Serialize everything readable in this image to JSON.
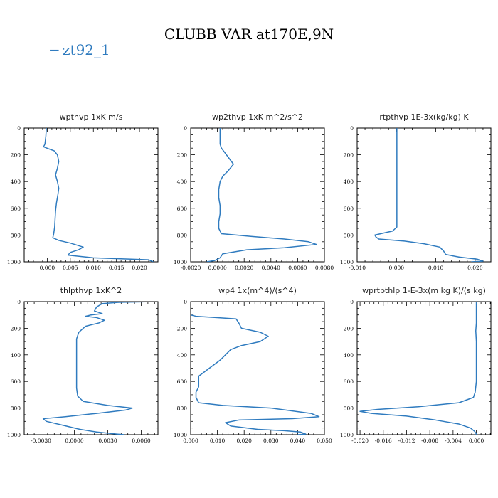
{
  "figure": {
    "title": "CLUBB VAR at170E,9N",
    "legend": {
      "label": "zt92_1",
      "marker": "−",
      "color": "#2f7bbf"
    }
  },
  "chart_data": [
    {
      "type": "line",
      "title": "wpthvp   1xK m/s",
      "xlim": [
        -0.005,
        0.024
      ],
      "ylim": [
        1000,
        0
      ],
      "xticks": [
        0,
        0.005,
        0.01,
        0.015,
        0.02
      ],
      "xticklabels": [
        "0.000",
        "0.005",
        "0.010",
        "0.015",
        "0.020"
      ],
      "yticks": [
        0,
        200,
        400,
        600,
        800,
        1000
      ],
      "yticklabels": [
        "0",
        "200",
        "400",
        "600",
        "800",
        "1000"
      ],
      "series": [
        {
          "color": "#2f7bbf",
          "points": [
            [
              -0.0002,
              0
            ],
            [
              -0.0003,
              60
            ],
            [
              -0.0005,
              120
            ],
            [
              -0.0008,
              140
            ],
            [
              0.0003,
              155
            ],
            [
              0.0015,
              170
            ],
            [
              0.0022,
              200
            ],
            [
              0.0025,
              250
            ],
            [
              0.0022,
              300
            ],
            [
              0.0018,
              350
            ],
            [
              0.0022,
              400
            ],
            [
              0.0025,
              450
            ],
            [
              0.0023,
              500
            ],
            [
              0.002,
              560
            ],
            [
              0.0018,
              620
            ],
            [
              0.0017,
              680
            ],
            [
              0.0016,
              740
            ],
            [
              0.0014,
              790
            ],
            [
              0.0012,
              820
            ],
            [
              0.0025,
              840
            ],
            [
              0.005,
              860
            ],
            [
              0.0078,
              890
            ],
            [
              0.0068,
              910
            ],
            [
              0.005,
              930
            ],
            [
              0.0045,
              950
            ],
            [
              0.01,
              970
            ],
            [
              0.022,
              985
            ],
            [
              0.023,
              1000
            ]
          ]
        }
      ]
    },
    {
      "type": "line",
      "title": "wp2thvp   1xK m^2/s^2",
      "xlim": [
        -0.002,
        0.008
      ],
      "ylim": [
        1000,
        0
      ],
      "xticks": [
        -0.002,
        0,
        0.002,
        0.004,
        0.006,
        0.008
      ],
      "xticklabels": [
        "-0.0020",
        "0.0000",
        "0.0020",
        "0.0040",
        "0.0060",
        "0.0080"
      ],
      "yticks": [
        0,
        200,
        400,
        600,
        800,
        1000
      ],
      "yticklabels": [
        "0",
        "200",
        "400",
        "600",
        "800",
        "1000"
      ],
      "series": [
        {
          "color": "#2f7bbf",
          "points": [
            [
              0.0002,
              0
            ],
            [
              0.0002,
              60
            ],
            [
              0.0002,
              120
            ],
            [
              0.0003,
              150
            ],
            [
              0.0006,
              190
            ],
            [
              0.0009,
              230
            ],
            [
              0.0012,
              270
            ],
            [
              0.0008,
              320
            ],
            [
              0.0004,
              360
            ],
            [
              0.0002,
              400
            ],
            [
              0.0001,
              460
            ],
            [
              0.0001,
              520
            ],
            [
              0.0002,
              580
            ],
            [
              0.0002,
              640
            ],
            [
              0.0001,
              700
            ],
            [
              0.0001,
              750
            ],
            [
              0.0003,
              790
            ],
            [
              0.0025,
              810
            ],
            [
              0.005,
              830
            ],
            [
              0.0068,
              850
            ],
            [
              0.0074,
              870
            ],
            [
              0.005,
              895
            ],
            [
              0.0022,
              910
            ],
            [
              0.0004,
              940
            ],
            [
              0.0002,
              970
            ],
            [
              -0.0002,
              990
            ],
            [
              -0.0008,
              1000
            ]
          ]
        }
      ]
    },
    {
      "type": "line",
      "title": "rtpthvp   1E-3x(kg/kg) K",
      "xlim": [
        -0.01,
        0.024
      ],
      "ylim": [
        1000,
        0
      ],
      "xticks": [
        -0.01,
        0,
        0.01,
        0.02
      ],
      "xticklabels": [
        "-0.010",
        "0.000",
        "0.010",
        "0.020"
      ],
      "yticks": [
        0,
        200,
        400,
        600,
        800,
        1000
      ],
      "yticklabels": [
        "0",
        "200",
        "400",
        "600",
        "800",
        "1000"
      ],
      "series": [
        {
          "color": "#2f7bbf",
          "points": [
            [
              0.0001,
              0
            ],
            [
              0.0001,
              100
            ],
            [
              0.0001,
              200
            ],
            [
              0.0001,
              300
            ],
            [
              0.0001,
              400
            ],
            [
              0.0001,
              500
            ],
            [
              0.0001,
              600
            ],
            [
              0.0001,
              680
            ],
            [
              0.0001,
              740
            ],
            [
              -0.001,
              770
            ],
            [
              -0.004,
              790
            ],
            [
              -0.0055,
              800
            ],
            [
              -0.0052,
              815
            ],
            [
              -0.0045,
              830
            ],
            [
              0.002,
              845
            ],
            [
              0.007,
              865
            ],
            [
              0.011,
              890
            ],
            [
              0.012,
              920
            ],
            [
              0.0125,
              945
            ],
            [
              0.016,
              965
            ],
            [
              0.0205,
              980
            ],
            [
              0.022,
              995
            ],
            [
              0.019,
              1000
            ]
          ]
        }
      ]
    },
    {
      "type": "line",
      "title": "thlpthvp   1xK^2",
      "xlim": [
        -0.0045,
        0.0075
      ],
      "ylim": [
        1000,
        0
      ],
      "xticks": [
        -0.003,
        0,
        0.003,
        0.006
      ],
      "xticklabels": [
        "-0.0030",
        "0.0000",
        "0.0030",
        "0.0060"
      ],
      "yticks": [
        0,
        200,
        400,
        600,
        800,
        1000
      ],
      "yticklabels": [
        "0",
        "200",
        "400",
        "600",
        "800",
        "1000"
      ],
      "series": [
        {
          "color": "#2f7bbf",
          "points": [
            [
              0.0072,
              0
            ],
            [
              0.004,
              5
            ],
            [
              0.0025,
              15
            ],
            [
              0.002,
              40
            ],
            [
              0.0018,
              70
            ],
            [
              0.0025,
              90
            ],
            [
              0.0015,
              100
            ],
            [
              0.001,
              110
            ],
            [
              0.002,
              120
            ],
            [
              0.0027,
              140
            ],
            [
              0.0022,
              160
            ],
            [
              0.001,
              185
            ],
            [
              0.0004,
              230
            ],
            [
              0.0002,
              280
            ],
            [
              0.0002,
              350
            ],
            [
              0.0002,
              420
            ],
            [
              0.0002,
              500
            ],
            [
              0.0002,
              580
            ],
            [
              0.0002,
              650
            ],
            [
              0.0003,
              710
            ],
            [
              0.0008,
              750
            ],
            [
              0.003,
              780
            ],
            [
              0.0052,
              800
            ],
            [
              0.0046,
              815
            ],
            [
              0.002,
              840
            ],
            [
              -0.0008,
              865
            ],
            [
              -0.0028,
              880
            ],
            [
              -0.0025,
              900
            ],
            [
              -0.001,
              930
            ],
            [
              0.0005,
              960
            ],
            [
              0.002,
              980
            ],
            [
              0.0038,
              995
            ],
            [
              0.0045,
              1000
            ]
          ]
        }
      ]
    },
    {
      "type": "line",
      "title": "wp4   1x(m^4)/(s^4)",
      "xlim": [
        0,
        0.05
      ],
      "ylim": [
        1000,
        0
      ],
      "xticks": [
        0,
        0.01,
        0.02,
        0.03,
        0.04,
        0.05
      ],
      "xticklabels": [
        "0.000",
        "0.010",
        "0.020",
        "0.030",
        "0.040",
        "0.050"
      ],
      "yticks": [
        0,
        200,
        400,
        600,
        800,
        1000
      ],
      "yticklabels": [
        "0",
        "200",
        "400",
        "600",
        "800",
        "1000"
      ],
      "series": [
        {
          "color": "#2f7bbf",
          "points": [
            [
              0,
              0
            ],
            [
              0,
              60
            ],
            [
              0,
              100
            ],
            [
              0.002,
              110
            ],
            [
              0.01,
              120
            ],
            [
              0.017,
              130
            ],
            [
              0.018,
              160
            ],
            [
              0.019,
              200
            ],
            [
              0.026,
              230
            ],
            [
              0.029,
              260
            ],
            [
              0.026,
              300
            ],
            [
              0.019,
              330
            ],
            [
              0.015,
              360
            ],
            [
              0.013,
              400
            ],
            [
              0.011,
              440
            ],
            [
              0.009,
              470
            ],
            [
              0.007,
              500
            ],
            [
              0.005,
              530
            ],
            [
              0.003,
              560
            ],
            [
              0.003,
              600
            ],
            [
              0.003,
              640
            ],
            [
              0.002,
              680
            ],
            [
              0.002,
              720
            ],
            [
              0.003,
              760
            ],
            [
              0.012,
              780
            ],
            [
              0.03,
              800
            ],
            [
              0.045,
              840
            ],
            [
              0.048,
              865
            ],
            [
              0.038,
              880
            ],
            [
              0.018,
              890
            ],
            [
              0.013,
              910
            ],
            [
              0.015,
              935
            ],
            [
              0.025,
              960
            ],
            [
              0.035,
              970
            ],
            [
              0.041,
              980
            ],
            [
              0.043,
              995
            ],
            [
              0.04,
              1000
            ]
          ]
        }
      ]
    },
    {
      "type": "line",
      "title": "wprtpthlp   1-E-3x(m kg K)/(s kg)",
      "xlim": [
        -0.0205,
        0.0025
      ],
      "ylim": [
        1000,
        0
      ],
      "xticks": [
        -0.02,
        -0.016,
        -0.012,
        -0.008,
        -0.004,
        0
      ],
      "xticklabels": [
        "-0.020",
        "-0.016",
        "-0.012",
        "-0.008",
        "-0.004",
        "0.000"
      ],
      "yticks": [
        0,
        200,
        400,
        600,
        800,
        1000
      ],
      "yticklabels": [
        "0",
        "200",
        "400",
        "600",
        "800",
        "1000"
      ],
      "series": [
        {
          "color": "#2f7bbf",
          "points": [
            [
              0,
              0
            ],
            [
              0,
              80
            ],
            [
              0,
              160
            ],
            [
              -0.0001,
              220
            ],
            [
              0,
              300
            ],
            [
              0,
              400
            ],
            [
              0,
              500
            ],
            [
              0,
              600
            ],
            [
              -0.0002,
              680
            ],
            [
              -0.0005,
              720
            ],
            [
              -0.003,
              760
            ],
            [
              -0.01,
              790
            ],
            [
              -0.017,
              810
            ],
            [
              -0.02,
              825
            ],
            [
              -0.018,
              840
            ],
            [
              -0.012,
              860
            ],
            [
              -0.007,
              890
            ],
            [
              -0.003,
              920
            ],
            [
              -0.001,
              950
            ],
            [
              -0.0003,
              975
            ],
            [
              0,
              995
            ],
            [
              0,
              1000
            ]
          ]
        }
      ]
    }
  ]
}
